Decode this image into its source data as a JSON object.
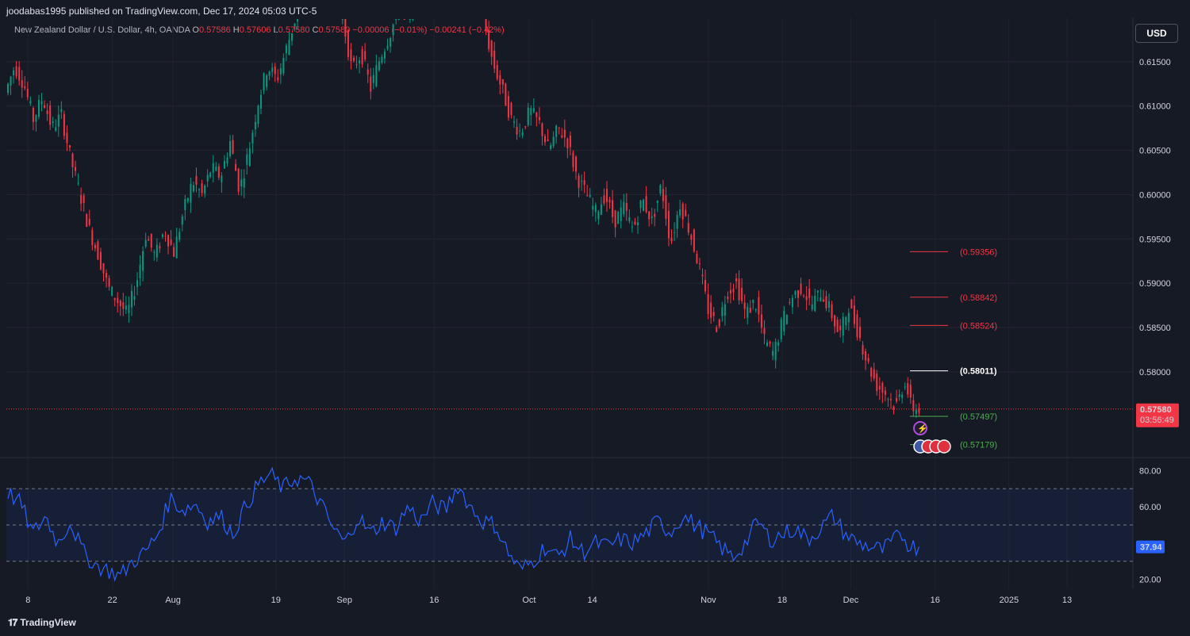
{
  "header": {
    "publisher": "joodabas1995 published on TradingView.com, Dec 17, 2024 05:03 UTC-5",
    "symbol": "New Zealand Dollar / U.S. Dollar, 4h, OANDA",
    "o_label": "O",
    "o": "0.57586",
    "h_label": "H",
    "h": "0.57606",
    "l_label": "L",
    "l": "0.57580",
    "c_label": "C",
    "c": "0.57580",
    "change": "−0.00006 (−0.01%)",
    "change2": "−0.00241 (−0.42%)"
  },
  "currency_button": "USD",
  "footer": {
    "brand": "TradingView"
  },
  "colors": {
    "up": "#089981",
    "down": "#f23645",
    "rsi": "#2962ff",
    "fib_red": "#f23645",
    "fib_green": "#4caf50",
    "fib_white": "#ffffff"
  },
  "icons": [
    "lightning-event-icon",
    "us-flag-icon",
    "economic-event-icon"
  ],
  "chart_data": {
    "type": "candlestick",
    "price_axis": {
      "ticks": [
        "0.61500",
        "0.61000",
        "0.60500",
        "0.60000",
        "0.59500",
        "0.59000",
        "0.58500",
        "0.58000"
      ],
      "range": [
        0.5705,
        0.62
      ]
    },
    "time_axis": [
      "8",
      "22",
      "Aug",
      "19",
      "Sep",
      "16",
      "Oct",
      "14",
      "Nov",
      "18",
      "Dec",
      "16",
      "2025",
      "13"
    ],
    "last_price": "0.57580",
    "countdown": "03:56:49",
    "fib_levels": [
      {
        "label": "(0.59356)",
        "value": 0.59356,
        "color": "red"
      },
      {
        "label": "(0.58842)",
        "value": 0.58842,
        "color": "red"
      },
      {
        "label": "(0.58524)",
        "value": 0.58524,
        "color": "red"
      },
      {
        "label": "(0.58011)",
        "value": 0.58011,
        "color": "white"
      },
      {
        "label": "(0.57497)",
        "value": 0.57497,
        "color": "green"
      },
      {
        "label": "(0.57179)",
        "value": 0.57179,
        "color": "green"
      }
    ],
    "price_path": [
      [
        0,
        0.6115
      ],
      [
        3,
        0.6145
      ],
      [
        6,
        0.6125
      ],
      [
        9,
        0.6085
      ],
      [
        12,
        0.611
      ],
      [
        15,
        0.6075
      ],
      [
        18,
        0.609
      ],
      [
        21,
        0.604
      ],
      [
        24,
        0.6
      ],
      [
        27,
        0.596
      ],
      [
        30,
        0.593
      ],
      [
        33,
        0.5895
      ],
      [
        36,
        0.588
      ],
      [
        39,
        0.5865
      ],
      [
        42,
        0.59
      ],
      [
        45,
        0.5955
      ],
      [
        48,
        0.593
      ],
      [
        51,
        0.596
      ],
      [
        54,
        0.5935
      ],
      [
        57,
        0.598
      ],
      [
        60,
        0.6015
      ],
      [
        63,
        0.6
      ],
      [
        66,
        0.603
      ],
      [
        69,
        0.602
      ],
      [
        72,
        0.606
      ],
      [
        75,
        0.6005
      ],
      [
        78,
        0.605
      ],
      [
        81,
        0.6105
      ],
      [
        84,
        0.6145
      ],
      [
        87,
        0.613
      ],
      [
        90,
        0.6165
      ],
      [
        93,
        0.62
      ],
      [
        96,
        0.623
      ],
      [
        99,
        0.625
      ],
      [
        102,
        0.6215
      ],
      [
        105,
        0.623
      ],
      [
        108,
        0.62
      ],
      [
        111,
        0.614
      ],
      [
        114,
        0.616
      ],
      [
        117,
        0.612
      ],
      [
        120,
        0.6155
      ],
      [
        123,
        0.618
      ],
      [
        126,
        0.621
      ],
      [
        129,
        0.62
      ],
      [
        132,
        0.623
      ],
      [
        135,
        0.622
      ],
      [
        138,
        0.625
      ],
      [
        141,
        0.627
      ],
      [
        144,
        0.624
      ],
      [
        147,
        0.6255
      ],
      [
        150,
        0.6235
      ],
      [
        153,
        0.62
      ],
      [
        156,
        0.615
      ],
      [
        159,
        0.612
      ],
      [
        162,
        0.6085
      ],
      [
        165,
        0.607
      ],
      [
        168,
        0.6095
      ],
      [
        171,
        0.608
      ],
      [
        174,
        0.605
      ],
      [
        177,
        0.6075
      ],
      [
        180,
        0.606
      ],
      [
        183,
        0.602
      ],
      [
        186,
        0.6
      ],
      [
        189,
        0.598
      ],
      [
        192,
        0.6
      ],
      [
        195,
        0.597
      ],
      [
        198,
        0.5985
      ],
      [
        201,
        0.596
      ],
      [
        204,
        0.5995
      ],
      [
        207,
        0.597
      ],
      [
        210,
        0.601
      ],
      [
        213,
        0.5945
      ],
      [
        216,
        0.599
      ],
      [
        219,
        0.596
      ],
      [
        222,
        0.592
      ],
      [
        225,
        0.587
      ],
      [
        228,
        0.585
      ],
      [
        231,
        0.589
      ],
      [
        234,
        0.59
      ],
      [
        237,
        0.5865
      ],
      [
        240,
        0.588
      ],
      [
        243,
        0.5835
      ],
      [
        246,
        0.582
      ],
      [
        249,
        0.586
      ],
      [
        252,
        0.5885
      ],
      [
        255,
        0.5895
      ],
      [
        258,
        0.5875
      ],
      [
        261,
        0.589
      ],
      [
        264,
        0.587
      ],
      [
        267,
        0.584
      ],
      [
        270,
        0.5875
      ],
      [
        273,
        0.5845
      ],
      [
        276,
        0.581
      ],
      [
        279,
        0.5785
      ],
      [
        282,
        0.5775
      ],
      [
        285,
        0.576
      ],
      [
        288,
        0.579
      ],
      [
        290,
        0.576
      ],
      [
        292,
        0.5758
      ]
    ],
    "rsi": {
      "axis_ticks": [
        "80.00",
        "60.00",
        "20.00"
      ],
      "range": [
        15,
        85
      ],
      "upper_band": 70,
      "mid": 50,
      "lower_band": 30,
      "last_value": "37.94",
      "path": [
        [
          0,
          68
        ],
        [
          4,
          62
        ],
        [
          8,
          45
        ],
        [
          12,
          55
        ],
        [
          16,
          40
        ],
        [
          20,
          52
        ],
        [
          24,
          35
        ],
        [
          28,
          28
        ],
        [
          32,
          25
        ],
        [
          36,
          22
        ],
        [
          40,
          30
        ],
        [
          44,
          35
        ],
        [
          48,
          45
        ],
        [
          52,
          65
        ],
        [
          56,
          58
        ],
        [
          60,
          62
        ],
        [
          64,
          52
        ],
        [
          68,
          55
        ],
        [
          72,
          45
        ],
        [
          76,
          60
        ],
        [
          80,
          72
        ],
        [
          84,
          78
        ],
        [
          88,
          70
        ],
        [
          92,
          76
        ],
        [
          96,
          74
        ],
        [
          100,
          62
        ],
        [
          104,
          48
        ],
        [
          108,
          40
        ],
        [
          112,
          55
        ],
        [
          116,
          45
        ],
        [
          120,
          52
        ],
        [
          124,
          48
        ],
        [
          128,
          60
        ],
        [
          132,
          52
        ],
        [
          136,
          62
        ],
        [
          140,
          58
        ],
        [
          144,
          72
        ],
        [
          148,
          60
        ],
        [
          152,
          52
        ],
        [
          156,
          50
        ],
        [
          160,
          35
        ],
        [
          164,
          25
        ],
        [
          168,
          30
        ],
        [
          172,
          38
        ],
        [
          176,
          32
        ],
        [
          180,
          42
        ],
        [
          184,
          35
        ],
        [
          188,
          40
        ],
        [
          192,
          38
        ],
        [
          196,
          42
        ],
        [
          200,
          40
        ],
        [
          204,
          45
        ],
        [
          208,
          52
        ],
        [
          212,
          46
        ],
        [
          216,
          55
        ],
        [
          220,
          50
        ],
        [
          224,
          45
        ],
        [
          228,
          38
        ],
        [
          232,
          32
        ],
        [
          236,
          40
        ],
        [
          240,
          52
        ],
        [
          244,
          42
        ],
        [
          248,
          45
        ],
        [
          252,
          48
        ],
        [
          256,
          42
        ],
        [
          260,
          48
        ],
        [
          264,
          55
        ],
        [
          268,
          45
        ],
        [
          272,
          40
        ],
        [
          276,
          38
        ],
        [
          280,
          36
        ],
        [
          284,
          42
        ],
        [
          286,
          45
        ],
        [
          288,
          40
        ],
        [
          290,
          38
        ],
        [
          292,
          37.94
        ]
      ]
    }
  }
}
